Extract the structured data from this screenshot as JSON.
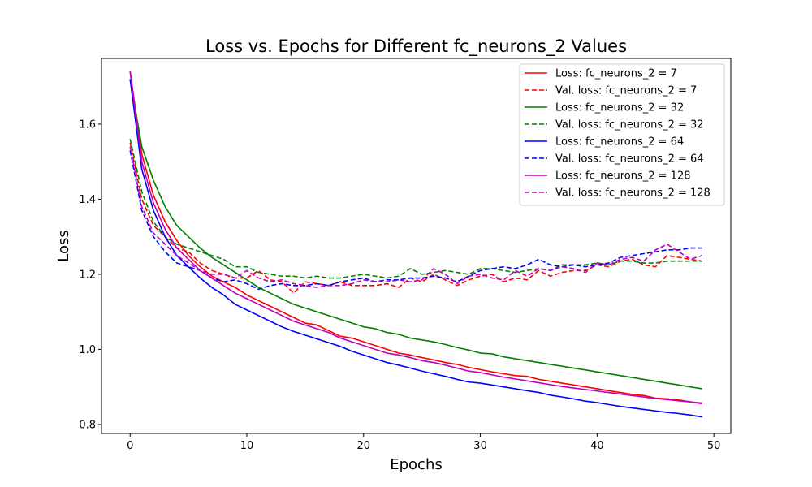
{
  "chart_data": {
    "type": "line",
    "title": "Loss vs. Epochs for Different fc_neurons_2 Values",
    "xlabel": "Epochs",
    "ylabel": "Loss",
    "xlim": [
      -2.45,
      51.45
    ],
    "ylim": [
      0.776,
      1.775
    ],
    "xticks": [
      0,
      10,
      20,
      30,
      40,
      50
    ],
    "yticks": [
      0.8,
      1.0,
      1.2,
      1.4,
      1.6
    ],
    "ytick_labels": [
      "0.8",
      "1.0",
      "1.2",
      "1.4",
      "1.6"
    ],
    "grid": false,
    "legend_position": "top-right",
    "x": [
      0,
      1,
      2,
      3,
      4,
      5,
      6,
      7,
      8,
      9,
      10,
      11,
      12,
      13,
      14,
      15,
      16,
      17,
      18,
      19,
      20,
      21,
      22,
      23,
      24,
      25,
      26,
      27,
      28,
      29,
      30,
      31,
      32,
      33,
      34,
      35,
      36,
      37,
      38,
      39,
      40,
      41,
      42,
      43,
      44,
      45,
      46,
      47,
      48,
      49
    ],
    "series": [
      {
        "name": "Loss: fc_neurons_2 = 7",
        "color": "#ff0000",
        "dash": "solid",
        "values": [
          1.74,
          1.52,
          1.41,
          1.34,
          1.29,
          1.25,
          1.22,
          1.195,
          1.18,
          1.165,
          1.145,
          1.13,
          1.115,
          1.1,
          1.085,
          1.07,
          1.065,
          1.05,
          1.035,
          1.03,
          1.02,
          1.01,
          1.0,
          0.99,
          0.985,
          0.978,
          0.972,
          0.965,
          0.96,
          0.952,
          0.946,
          0.94,
          0.935,
          0.93,
          0.928,
          0.92,
          0.915,
          0.91,
          0.905,
          0.9,
          0.895,
          0.89,
          0.885,
          0.88,
          0.877,
          0.87,
          0.868,
          0.865,
          0.86,
          0.855
        ]
      },
      {
        "name": "Val. loss: fc_neurons_2 = 7",
        "color": "#ff0000",
        "dash": "dashed",
        "values": [
          1.55,
          1.4,
          1.33,
          1.3,
          1.27,
          1.26,
          1.23,
          1.21,
          1.2,
          1.19,
          1.19,
          1.21,
          1.185,
          1.18,
          1.15,
          1.18,
          1.175,
          1.17,
          1.18,
          1.17,
          1.17,
          1.17,
          1.175,
          1.165,
          1.19,
          1.18,
          1.2,
          1.185,
          1.17,
          1.185,
          1.195,
          1.2,
          1.18,
          1.19,
          1.185,
          1.21,
          1.195,
          1.205,
          1.21,
          1.21,
          1.225,
          1.22,
          1.235,
          1.24,
          1.225,
          1.22,
          1.25,
          1.245,
          1.24,
          1.235
        ]
      },
      {
        "name": "Loss: fc_neurons_2 = 32",
        "color": "#008000",
        "dash": "solid",
        "values": [
          1.72,
          1.54,
          1.45,
          1.38,
          1.33,
          1.3,
          1.27,
          1.245,
          1.225,
          1.205,
          1.185,
          1.165,
          1.15,
          1.135,
          1.12,
          1.11,
          1.1,
          1.09,
          1.08,
          1.07,
          1.06,
          1.055,
          1.045,
          1.04,
          1.03,
          1.025,
          1.02,
          1.013,
          1.005,
          0.998,
          0.99,
          0.988,
          0.98,
          0.975,
          0.97,
          0.965,
          0.96,
          0.955,
          0.95,
          0.945,
          0.94,
          0.935,
          0.93,
          0.925,
          0.92,
          0.915,
          0.91,
          0.905,
          0.9,
          0.895
        ]
      },
      {
        "name": "Val. loss: fc_neurons_2 = 32",
        "color": "#008000",
        "dash": "dashed",
        "values": [
          1.56,
          1.42,
          1.34,
          1.3,
          1.28,
          1.27,
          1.26,
          1.25,
          1.24,
          1.22,
          1.22,
          1.205,
          1.2,
          1.195,
          1.195,
          1.19,
          1.195,
          1.19,
          1.19,
          1.195,
          1.2,
          1.195,
          1.19,
          1.195,
          1.215,
          1.2,
          1.205,
          1.21,
          1.205,
          1.2,
          1.215,
          1.215,
          1.21,
          1.205,
          1.21,
          1.215,
          1.21,
          1.225,
          1.225,
          1.225,
          1.23,
          1.225,
          1.235,
          1.235,
          1.23,
          1.23,
          1.235,
          1.235,
          1.235,
          1.235
        ]
      },
      {
        "name": "Loss: fc_neurons_2 = 64",
        "color": "#0000ff",
        "dash": "solid",
        "values": [
          1.72,
          1.48,
          1.37,
          1.3,
          1.25,
          1.22,
          1.19,
          1.165,
          1.145,
          1.12,
          1.105,
          1.09,
          1.075,
          1.06,
          1.048,
          1.038,
          1.028,
          1.018,
          1.008,
          0.995,
          0.985,
          0.975,
          0.965,
          0.958,
          0.95,
          0.942,
          0.935,
          0.928,
          0.92,
          0.913,
          0.91,
          0.905,
          0.9,
          0.895,
          0.89,
          0.885,
          0.878,
          0.873,
          0.868,
          0.862,
          0.858,
          0.853,
          0.848,
          0.844,
          0.84,
          0.836,
          0.832,
          0.829,
          0.825,
          0.82
        ]
      },
      {
        "name": "Val. loss: fc_neurons_2 = 64",
        "color": "#0000ff",
        "dash": "dashed",
        "values": [
          1.53,
          1.37,
          1.3,
          1.26,
          1.23,
          1.22,
          1.21,
          1.19,
          1.18,
          1.185,
          1.175,
          1.16,
          1.17,
          1.175,
          1.17,
          1.17,
          1.175,
          1.17,
          1.18,
          1.185,
          1.19,
          1.18,
          1.185,
          1.185,
          1.19,
          1.19,
          1.195,
          1.19,
          1.18,
          1.195,
          1.21,
          1.215,
          1.22,
          1.215,
          1.225,
          1.24,
          1.225,
          1.22,
          1.225,
          1.22,
          1.225,
          1.23,
          1.245,
          1.25,
          1.255,
          1.26,
          1.265,
          1.265,
          1.27,
          1.27
        ]
      },
      {
        "name": "Loss: fc_neurons_2 = 128",
        "color": "#bf00bf",
        "dash": "solid",
        "values": [
          1.74,
          1.5,
          1.39,
          1.32,
          1.27,
          1.24,
          1.21,
          1.19,
          1.17,
          1.15,
          1.135,
          1.12,
          1.105,
          1.09,
          1.075,
          1.065,
          1.055,
          1.045,
          1.03,
          1.02,
          1.01,
          1.0,
          0.99,
          0.985,
          0.978,
          0.97,
          0.965,
          0.958,
          0.95,
          0.942,
          0.938,
          0.932,
          0.926,
          0.921,
          0.916,
          0.911,
          0.906,
          0.901,
          0.897,
          0.893,
          0.889,
          0.885,
          0.881,
          0.877,
          0.873,
          0.869,
          0.866,
          0.863,
          0.86,
          0.857
        ]
      },
      {
        "name": "Val. loss: fc_neurons_2 = 128",
        "color": "#bf00bf",
        "dash": "dashed",
        "values": [
          1.54,
          1.38,
          1.31,
          1.28,
          1.25,
          1.23,
          1.21,
          1.2,
          1.2,
          1.19,
          1.21,
          1.19,
          1.18,
          1.185,
          1.175,
          1.17,
          1.165,
          1.17,
          1.17,
          1.175,
          1.185,
          1.18,
          1.18,
          1.185,
          1.18,
          1.185,
          1.215,
          1.2,
          1.175,
          1.195,
          1.2,
          1.19,
          1.185,
          1.21,
          1.195,
          1.215,
          1.21,
          1.22,
          1.215,
          1.205,
          1.23,
          1.225,
          1.24,
          1.245,
          1.235,
          1.265,
          1.28,
          1.26,
          1.24,
          1.25
        ]
      }
    ]
  }
}
